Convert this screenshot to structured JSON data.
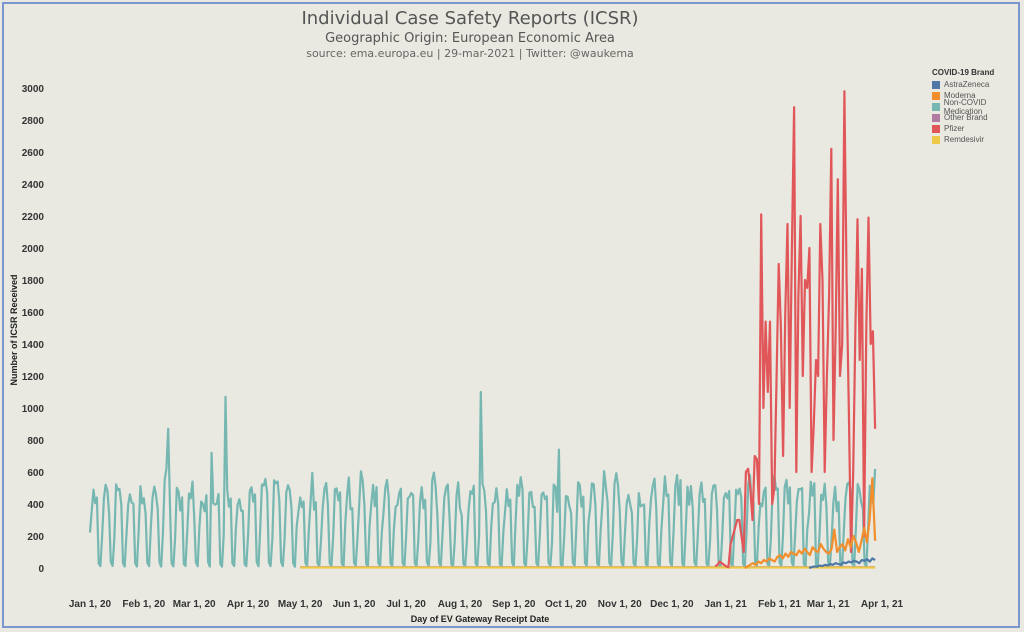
{
  "title": "Individual Case Safety Reports (ICSR)",
  "subtitle": "Geographic Origin: European Economic Area",
  "source": "source: ema.europa.eu | 29-mar-2021 | Twitter: @waukema",
  "legend": {
    "title": "COVID-19 Brand",
    "items": [
      {
        "label": "AstraZeneca",
        "color": "#4e79a7"
      },
      {
        "label": "Moderna",
        "color": "#f28e2b"
      },
      {
        "label": "Non-COVID Medication",
        "color": "#76b7b2"
      },
      {
        "label": "Other Brand",
        "color": "#b07aa1"
      },
      {
        "label": "Pfizer",
        "color": "#e15759"
      },
      {
        "label": "Remdesivir",
        "color": "#edc948"
      }
    ]
  },
  "chart_data": {
    "type": "line",
    "title": "Individual Case Safety Reports (ICSR)",
    "xlabel": "Day of EV Gateway Receipt Date",
    "ylabel": "Number of ICSR Received",
    "ylim": [
      0,
      3000
    ],
    "yticks": [
      0,
      200,
      400,
      600,
      800,
      1000,
      1200,
      1400,
      1600,
      1800,
      2000,
      2200,
      2400,
      2600,
      2800,
      3000
    ],
    "xticks": [
      "Jan 1, 20",
      "Feb 1, 20",
      "Mar 1, 20",
      "Apr 1, 20",
      "May 1, 20",
      "Jun 1, 20",
      "Jul 1, 20",
      "Aug 1, 20",
      "Sep 1, 20",
      "Oct 1, 20",
      "Nov 1, 20",
      "Dec 1, 20",
      "Jan 1, 21",
      "Feb 1, 21",
      "Mar 1, 21",
      "Apr 1, 21"
    ],
    "xtick_days": [
      0,
      31,
      60,
      91,
      121,
      152,
      182,
      213,
      244,
      274,
      305,
      335,
      366,
      397,
      425,
      456
    ],
    "x_start": "2020-01-01",
    "grid": false,
    "legend_position": "top-right",
    "series": [
      {
        "name": "Non-COVID Medication",
        "start_day": 0,
        "weekly": [
          180,
          400,
          450,
          420,
          380,
          30,
          10
        ],
        "peaks": [
          [
            45,
            870
          ],
          [
            78,
            1070
          ],
          [
            122,
            380
          ],
          [
            225,
            1100
          ],
          [
            270,
            740
          ],
          [
            70,
            720
          ]
        ],
        "end_value": 620
      },
      {
        "name": "Pfizer",
        "start_day": 360,
        "values": [
          10,
          20,
          40,
          30,
          20,
          10,
          5,
          150,
          200,
          250,
          300,
          300,
          200,
          100,
          600,
          620,
          500,
          300,
          700,
          680,
          400,
          2210,
          1000,
          1540,
          1100,
          1540,
          400,
          500,
          1200,
          1900,
          1500,
          700,
          1600,
          2150,
          1000,
          2000,
          2880,
          600,
          1700,
          2200,
          1200,
          1800,
          1750,
          2000,
          600,
          900,
          1300,
          1200,
          2150,
          1800,
          600,
          1200,
          1700,
          2620,
          800,
          1500,
          2430,
          1200,
          1400,
          2980,
          1800,
          1000,
          100,
          600,
          1500,
          2180,
          1300,
          1870,
          200,
          1500,
          2190,
          1400,
          1480,
          870
        ]
      },
      {
        "name": "Moderna",
        "start_day": 377,
        "values": [
          0,
          10,
          20,
          30,
          20,
          40,
          30,
          50,
          40,
          60,
          50,
          40,
          70,
          80,
          60,
          90,
          70,
          100,
          90,
          80,
          110,
          90,
          120,
          100,
          80,
          130,
          110,
          100,
          150,
          120,
          100,
          90,
          120,
          240,
          100,
          130,
          150,
          110,
          180,
          130,
          200,
          160,
          100,
          170,
          250,
          160,
          300,
          560,
          170
        ]
      },
      {
        "name": "AstraZeneca",
        "start_day": 414,
        "values": [
          0,
          5,
          10,
          8,
          15,
          12,
          20,
          15,
          25,
          20,
          30,
          25,
          20,
          35,
          30,
          40,
          35,
          45,
          40,
          30,
          50,
          45,
          55,
          40,
          60,
          50
        ]
      },
      {
        "name": "Other Brand",
        "start_day": 121,
        "values_const": 5
      },
      {
        "name": "Remdesivir",
        "start_day": 121,
        "values_const": 3
      }
    ]
  }
}
